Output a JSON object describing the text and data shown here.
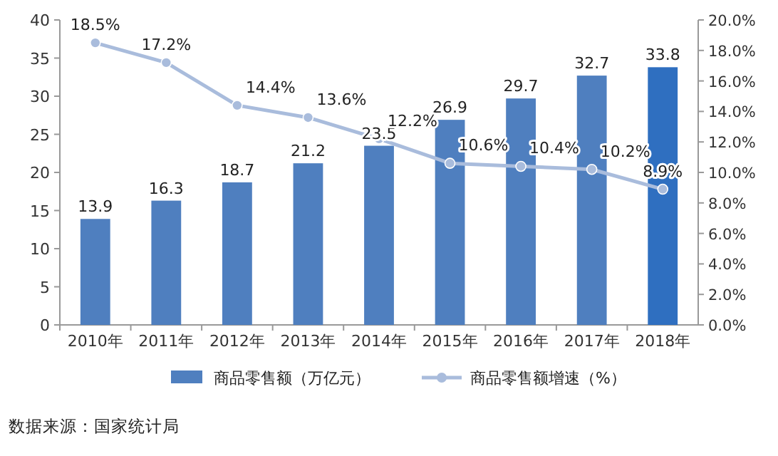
{
  "chart_data": {
    "type": "bar",
    "categories": [
      "2010年",
      "2011年",
      "2012年",
      "2013年",
      "2014年",
      "2015年",
      "2016年",
      "2017年",
      "2018年"
    ],
    "series": [
      {
        "name": "商品零售额（万亿元）",
        "color": "#4f7fbf",
        "colors": [
          "#4f7fbf",
          "#4f7fbf",
          "#4f7fbf",
          "#4f7fbf",
          "#4f7fbf",
          "#4f7fbf",
          "#4f7fbf",
          "#4f7fbf",
          "#2f6fc0"
        ],
        "values": [
          13.9,
          16.3,
          18.7,
          21.2,
          23.5,
          26.9,
          29.7,
          32.7,
          33.8
        ]
      },
      {
        "name": "商品零售额增速（%）",
        "type": "line",
        "axis": "y2",
        "color": "#a9bcdc",
        "values": [
          18.5,
          17.2,
          14.4,
          13.6,
          12.2,
          10.6,
          10.4,
          10.2,
          8.9
        ],
        "value_labels": [
          "18.5%",
          "17.2%",
          "14.4%",
          "13.6%",
          "12.2%",
          "10.6%",
          "10.4%",
          "10.2%",
          "8.9%"
        ]
      }
    ],
    "ylim": [
      0,
      40
    ],
    "yticks": [
      0,
      5,
      10,
      15,
      20,
      25,
      30,
      35,
      40
    ],
    "y2lim": [
      0,
      20
    ],
    "y2ticks": [
      {
        "value": 0,
        "label": "0.0%"
      },
      {
        "value": 2,
        "label": "2.0%"
      },
      {
        "value": 4,
        "label": "4.0%"
      },
      {
        "value": 6,
        "label": "6.0%"
      },
      {
        "value": 8,
        "label": "8.0%"
      },
      {
        "value": 10,
        "label": "10.0%"
      },
      {
        "value": 12,
        "label": "12.0%"
      },
      {
        "value": 14,
        "label": "14.0%"
      },
      {
        "value": 16,
        "label": "16.0%"
      },
      {
        "value": 18,
        "label": "18.0%"
      },
      {
        "value": 20,
        "label": "20.0%"
      }
    ],
    "data_labels": true,
    "marker": "circle",
    "legend": "bottom",
    "grid": false,
    "annotations": [
      "数据来源：国家统计局"
    ]
  }
}
